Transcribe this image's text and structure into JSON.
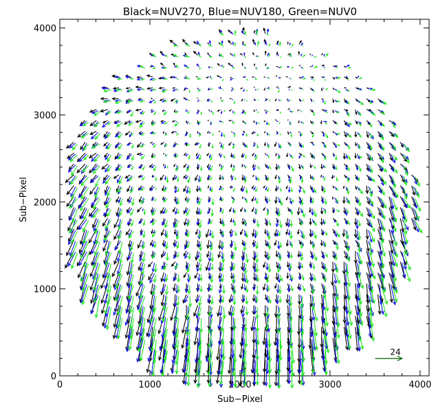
{
  "chart_data": {
    "type": "quiver",
    "title": "Black=NUV270, Blue=NUV180, Green=NUV0",
    "xlabel": "Sub−Pixel",
    "ylabel": "Sub−Pixel",
    "xlim": [
      0,
      4100
    ],
    "ylim": [
      0,
      4100
    ],
    "xticks": [
      0,
      1000,
      2000,
      3000,
      4000
    ],
    "yticks": [
      0,
      1000,
      2000,
      3000,
      4000
    ],
    "xtick_labels": [
      "0",
      "1000",
      "2000",
      "3000",
      "4000"
    ],
    "ytick_labels": [
      "0",
      "1000",
      "2000",
      "3000",
      "4000"
    ],
    "grid": false,
    "field": {
      "center": [
        2000,
        2000
      ],
      "radius": 1950,
      "grid_spacing": 125
    },
    "series": [
      {
        "color": "#000000"
      },
      {
        "color": "#1515e8"
      },
      {
        "color": "#1ee81e"
      }
    ],
    "reference_arrow": {
      "label": "24",
      "color": "#006400",
      "x": 3500,
      "y": 200,
      "length": 300
    }
  }
}
